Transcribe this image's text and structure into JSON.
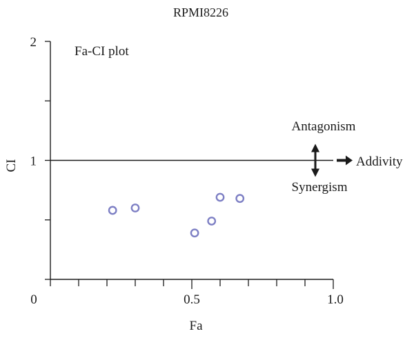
{
  "colors": {
    "axis": "#1a1a1a",
    "point_stroke": "#7d7fc4",
    "reference_line": "#1a1a1a",
    "arrow": "#1a1a1a"
  },
  "chart_data": {
    "type": "scatter",
    "title": "RPMI8226",
    "xlabel": "Fa",
    "ylabel": "CI",
    "xlim": [
      0,
      1.0
    ],
    "ylim": [
      0,
      2
    ],
    "x_tick_labels": [
      "0",
      "0.5",
      "1.0"
    ],
    "y_tick_labels": [
      "1",
      "2"
    ],
    "grid": false,
    "legend": "none",
    "points": [
      {
        "x": 0.22,
        "y": 0.58
      },
      {
        "x": 0.3,
        "y": 0.6
      },
      {
        "x": 0.51,
        "y": 0.39
      },
      {
        "x": 0.57,
        "y": 0.49
      },
      {
        "x": 0.6,
        "y": 0.69
      },
      {
        "x": 0.67,
        "y": 0.68
      }
    ],
    "reference_line": {
      "y": 1
    },
    "annotations": {
      "plot_label": "Fa-CI plot",
      "above": "Antagonism",
      "below": "Synergism",
      "right": "Addivity"
    }
  }
}
